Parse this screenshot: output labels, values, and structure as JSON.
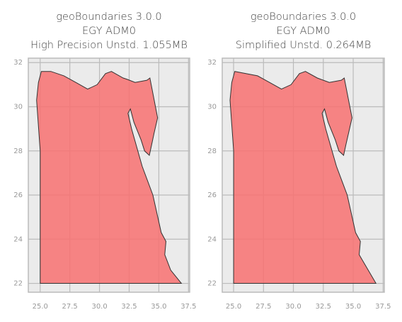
{
  "chart_data": [
    {
      "type": "map",
      "title": [
        "geoBoundaries 3.0.0",
        "EGY ADM0",
        "High Precision Unstd. 1.055MB"
      ],
      "xlim": [
        24.0,
        37.6
      ],
      "ylim": [
        21.6,
        32.2
      ],
      "xticks": [
        {
          "value": 25,
          "label": "25.0"
        },
        27.5,
        {
          "value": 30,
          "label": "30.0"
        },
        32.5,
        {
          "value": 35,
          "label": "35.0"
        },
        37.5
      ],
      "yticks": [
        22,
        24,
        26,
        28,
        30,
        32
      ],
      "grid": true,
      "color": "#f87171",
      "outline": {
        "x": [
          25.0,
          25.0,
          24.7,
          24.85,
          25.1,
          25.9,
          27.0,
          28.0,
          29.0,
          29.8,
          30.5,
          31.0,
          32.0,
          32.3,
          33.0,
          34.0,
          34.25,
          34.9,
          34.6,
          34.4,
          34.2,
          33.8,
          33.5,
          32.9,
          32.6,
          32.4,
          32.7,
          33.6,
          34.5,
          35.2,
          35.6,
          35.5,
          36.0,
          36.9,
          31.4,
          25.0
        ],
        "y": [
          22.0,
          28.0,
          30.3,
          31.1,
          31.6,
          31.6,
          31.4,
          31.1,
          30.8,
          31.0,
          31.5,
          31.6,
          31.3,
          31.25,
          31.1,
          31.2,
          31.3,
          29.5,
          28.8,
          28.3,
          27.8,
          28.0,
          28.5,
          29.3,
          29.9,
          29.7,
          29.0,
          27.3,
          26.0,
          24.3,
          23.9,
          23.3,
          22.6,
          22.0,
          22.0,
          22.0
        ]
      }
    },
    {
      "type": "map",
      "title": [
        "geoBoundaries 3.0.0",
        "EGY ADM0",
        "Simplified Unstd. 0.264MB"
      ],
      "xlim": [
        24.05,
        37.6
      ],
      "ylim": [
        21.6,
        32.2
      ],
      "xticks": [
        {
          "value": 25,
          "label": "25.0"
        },
        27.5,
        {
          "value": 30,
          "label": "30.0"
        },
        32.5,
        {
          "value": 35,
          "label": "35.0"
        },
        37.5
      ],
      "yticks": [
        22,
        24,
        26,
        28,
        30,
        32
      ],
      "grid": true,
      "color": "#f87171",
      "outline": {
        "x": [
          25.0,
          25.0,
          24.7,
          24.85,
          25.1,
          27.0,
          28.0,
          29.0,
          29.8,
          30.5,
          31.0,
          32.0,
          33.0,
          34.0,
          34.25,
          34.9,
          34.4,
          34.2,
          33.8,
          33.5,
          32.9,
          32.6,
          32.4,
          32.7,
          33.6,
          34.5,
          35.2,
          35.6,
          35.5,
          36.9,
          25.0
        ],
        "y": [
          22.0,
          28.0,
          30.3,
          31.1,
          31.6,
          31.4,
          31.1,
          30.8,
          31.0,
          31.5,
          31.6,
          31.3,
          31.1,
          31.2,
          31.3,
          29.5,
          28.3,
          27.8,
          28.0,
          28.5,
          29.3,
          29.9,
          29.7,
          29.0,
          27.3,
          26.0,
          24.3,
          23.9,
          23.3,
          22.0,
          22.0
        ]
      }
    }
  ]
}
